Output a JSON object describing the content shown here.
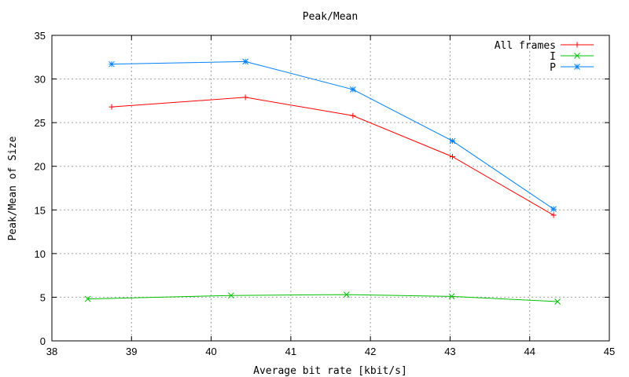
{
  "chart_data": {
    "type": "line",
    "title": "Peak/Mean",
    "xlabel": "Average bit rate [kbit/s]",
    "ylabel": "Peak/Mean of Size",
    "xlim": [
      38,
      45
    ],
    "ylim": [
      0,
      35
    ],
    "xticks": [
      38,
      39,
      40,
      41,
      42,
      43,
      44,
      45
    ],
    "yticks": [
      0,
      5,
      10,
      15,
      20,
      25,
      30,
      35
    ],
    "grid": true,
    "legend_position": "top-right",
    "series": [
      {
        "name": "All frames",
        "color": "#ff0000",
        "marker": "plus",
        "x": [
          38.75,
          40.43,
          41.78,
          43.03,
          44.3
        ],
        "y": [
          26.8,
          27.9,
          25.8,
          21.1,
          14.4
        ]
      },
      {
        "name": "I",
        "color": "#00c000",
        "marker": "cross",
        "x": [
          38.45,
          40.25,
          41.7,
          43.02,
          44.35
        ],
        "y": [
          4.8,
          5.2,
          5.3,
          5.1,
          4.5
        ]
      },
      {
        "name": "P",
        "color": "#0080ff",
        "marker": "star",
        "x": [
          38.75,
          40.43,
          41.78,
          43.03,
          44.3
        ],
        "y": [
          31.7,
          32.0,
          28.8,
          22.9,
          15.1
        ]
      }
    ]
  }
}
